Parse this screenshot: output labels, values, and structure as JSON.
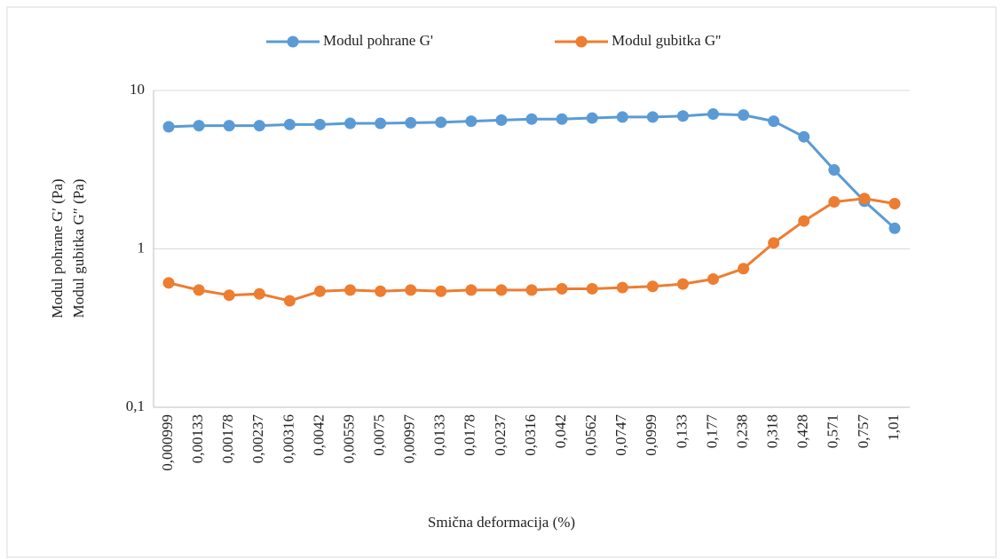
{
  "chart_data": {
    "type": "line",
    "x_label": "Smična deformacija (%)",
    "y_label": [
      "Modul pohrane G′ (Pa)",
      "Modul gubitka G″ (Pa)"
    ],
    "categories": [
      "0,000999",
      "0,00133",
      "0,00178",
      "0,00237",
      "0,00316",
      "0,0042",
      "0,00559",
      "0,0075",
      "0,00997",
      "0,0133",
      "0,0178",
      "0,0237",
      "0,0316",
      "0,042",
      "0,0562",
      "0,0747",
      "0,0999",
      "0,133",
      "0,177",
      "0,238",
      "0,318",
      "0,428",
      "0,571",
      "0,757",
      "1,01"
    ],
    "series": [
      {
        "name": "Modul pohrane G'",
        "color": "#5b9bd5",
        "values": [
          5.9,
          6.0,
          6.0,
          6.0,
          6.1,
          6.1,
          6.2,
          6.2,
          6.25,
          6.3,
          6.4,
          6.5,
          6.6,
          6.6,
          6.7,
          6.8,
          6.8,
          6.9,
          7.1,
          7.0,
          6.4,
          5.1,
          3.15,
          2.0,
          1.35
        ]
      },
      {
        "name": "Modul gubitka G''",
        "color": "#ed7d31",
        "values": [
          0.61,
          0.55,
          0.51,
          0.52,
          0.47,
          0.54,
          0.55,
          0.54,
          0.55,
          0.54,
          0.55,
          0.55,
          0.55,
          0.56,
          0.56,
          0.57,
          0.58,
          0.6,
          0.645,
          0.75,
          1.09,
          1.5,
          1.98,
          2.08,
          1.93
        ]
      }
    ],
    "ylim": [
      0.1,
      10
    ],
    "yticks": [
      {
        "value": 0.1,
        "label": "0,1"
      },
      1,
      10
    ],
    "log_y": true,
    "grid": true,
    "legend": "top"
  }
}
